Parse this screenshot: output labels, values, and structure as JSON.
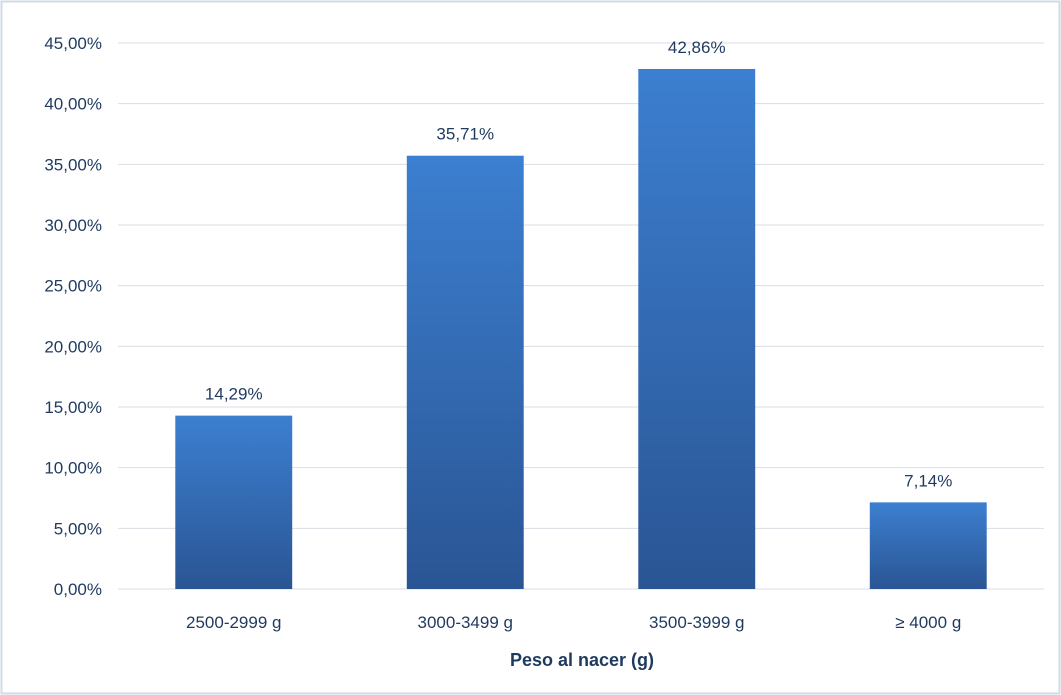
{
  "chart_data": {
    "type": "bar",
    "title": "",
    "xlabel": "Peso al nacer (g)",
    "ylabel": "",
    "categories": [
      "2500-2999 g",
      "3000-3499 g",
      "3500-3999 g",
      "≥ 4000 g"
    ],
    "values": [
      14.29,
      35.71,
      42.86,
      7.14
    ],
    "value_labels": [
      "14,29%",
      "35,71%",
      "42,86%",
      "7,14%"
    ],
    "ylim": [
      0,
      45
    ],
    "yticks": [
      0,
      5,
      10,
      15,
      20,
      25,
      30,
      35,
      40,
      45
    ],
    "ytick_labels": [
      "0,00%",
      "5,00%",
      "10,00%",
      "15,00%",
      "20,00%",
      "25,00%",
      "30,00%",
      "35,00%",
      "40,00%",
      "45,00%"
    ],
    "grid": true,
    "legend": "none",
    "colors": {
      "bar_top": "#3c7fd0",
      "bar_bottom": "#2a5594",
      "text": "#1f3a5f",
      "grid": "#d9dde3",
      "frame": "#d0dbe8"
    }
  }
}
